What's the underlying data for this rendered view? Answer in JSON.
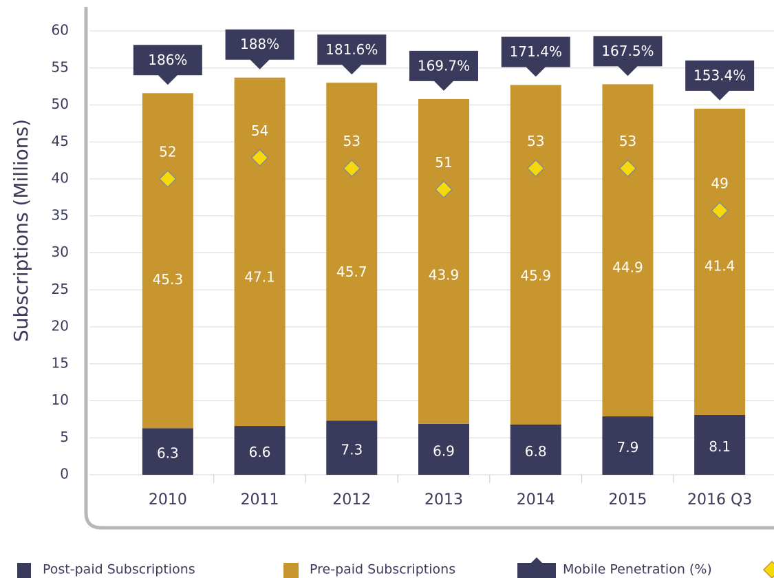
{
  "chart_data": {
    "type": "bar",
    "y_label": "Subscriptions (Millions)",
    "categories": [
      "2010",
      "2011",
      "2012",
      "2013",
      "2014",
      "2015",
      "2016 Q3"
    ],
    "series": [
      {
        "name": "Post-paid Subscriptions",
        "color": "#3a3a5c",
        "values": [
          6.3,
          6.6,
          7.3,
          6.9,
          6.8,
          7.9,
          8.1
        ]
      },
      {
        "name": "Pre-paid Subscriptions",
        "color": "#c8962e",
        "values": [
          45.3,
          47.1,
          45.7,
          43.9,
          45.9,
          44.9,
          41.4
        ]
      },
      {
        "name": "Mobile Penetration (%)",
        "color": "#3a3a5c",
        "values": [
          186,
          188,
          181.6,
          169.7,
          171.4,
          167.5,
          153.4
        ],
        "value_labels": [
          "186%",
          "188%",
          "181.6%",
          "169.7%",
          "171.4%",
          "167.5%",
          "153.4%"
        ]
      },
      {
        "color": "#f5d90a",
        "axis": "y2",
        "values": [
          52,
          54,
          53,
          51,
          53,
          53,
          49
        ]
      }
    ],
    "ylim": [
      0,
      60
    ],
    "yticks": [
      0,
      5,
      10,
      15,
      20,
      25,
      30,
      35,
      40,
      45,
      50,
      55,
      60
    ],
    "y2lim": [
      24,
      66
    ],
    "grid": true,
    "legend": "bottom"
  }
}
